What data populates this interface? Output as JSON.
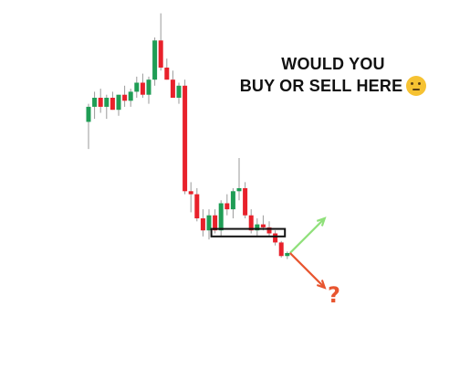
{
  "headline": {
    "line1": "WOULD YOU",
    "line2": "BUY OR SELL HERE",
    "emoji_icon": "thinking-face-icon"
  },
  "question_mark": "?",
  "colors": {
    "bull": "#1f9d55",
    "bear": "#e8212b",
    "wick": "#9a9a9a",
    "buy_arrow": "#8fe07a",
    "sell_arrow": "#e8552f",
    "zone_box": "#111111"
  },
  "chart_data": {
    "type": "candlestick",
    "title": "",
    "xlabel": "",
    "ylabel": "",
    "grid": false,
    "ylim": [
      0,
      100
    ],
    "candles": [
      {
        "o": 62,
        "h": 68,
        "l": 53,
        "c": 67
      },
      {
        "o": 67,
        "h": 72,
        "l": 63,
        "c": 70
      },
      {
        "o": 70,
        "h": 73,
        "l": 65,
        "c": 67
      },
      {
        "o": 67,
        "h": 71,
        "l": 63,
        "c": 70
      },
      {
        "o": 70,
        "h": 72,
        "l": 66,
        "c": 66
      },
      {
        "o": 66,
        "h": 71,
        "l": 64,
        "c": 71
      },
      {
        "o": 71,
        "h": 74,
        "l": 67,
        "c": 69
      },
      {
        "o": 69,
        "h": 73,
        "l": 67,
        "c": 72
      },
      {
        "o": 72,
        "h": 77,
        "l": 70,
        "c": 75
      },
      {
        "o": 75,
        "h": 78,
        "l": 70,
        "c": 71
      },
      {
        "o": 71,
        "h": 77,
        "l": 68,
        "c": 76
      },
      {
        "o": 76,
        "h": 90,
        "l": 74,
        "c": 89
      },
      {
        "o": 89,
        "h": 98,
        "l": 79,
        "c": 80
      },
      {
        "o": 80,
        "h": 83,
        "l": 76,
        "c": 76
      },
      {
        "o": 76,
        "h": 79,
        "l": 70,
        "c": 70
      },
      {
        "o": 70,
        "h": 75,
        "l": 68,
        "c": 74
      },
      {
        "o": 74,
        "h": 76,
        "l": 38,
        "c": 39
      },
      {
        "o": 39,
        "h": 42,
        "l": 32,
        "c": 38
      },
      {
        "o": 38,
        "h": 40,
        "l": 29,
        "c": 30
      },
      {
        "o": 30,
        "h": 33,
        "l": 24,
        "c": 26
      },
      {
        "o": 26,
        "h": 33,
        "l": 23,
        "c": 31
      },
      {
        "o": 31,
        "h": 33,
        "l": 25,
        "c": 26
      },
      {
        "o": 26,
        "h": 36,
        "l": 24,
        "c": 35
      },
      {
        "o": 35,
        "h": 38,
        "l": 31,
        "c": 33
      },
      {
        "o": 33,
        "h": 40,
        "l": 30,
        "c": 39
      },
      {
        "o": 39,
        "h": 50,
        "l": 36,
        "c": 40
      },
      {
        "o": 40,
        "h": 42,
        "l": 30,
        "c": 31
      },
      {
        "o": 31,
        "h": 33,
        "l": 25,
        "c": 26
      },
      {
        "o": 26,
        "h": 30,
        "l": 24,
        "c": 28
      },
      {
        "o": 28,
        "h": 31,
        "l": 26,
        "c": 27
      },
      {
        "o": 27,
        "h": 29,
        "l": 24,
        "c": 25
      },
      {
        "o": 25,
        "h": 26,
        "l": 21,
        "c": 22
      },
      {
        "o": 22,
        "h": 22.5,
        "l": 17,
        "c": 17.5
      },
      {
        "o": 17.5,
        "h": 19,
        "l": 16.5,
        "c": 18.5
      }
    ],
    "support_zone": {
      "from_candle": 21,
      "to_candle": 32,
      "low": 24,
      "high": 26.5
    },
    "projection_arrows": [
      {
        "label": "buy",
        "direction": "up"
      },
      {
        "label": "sell",
        "direction": "down"
      }
    ]
  }
}
